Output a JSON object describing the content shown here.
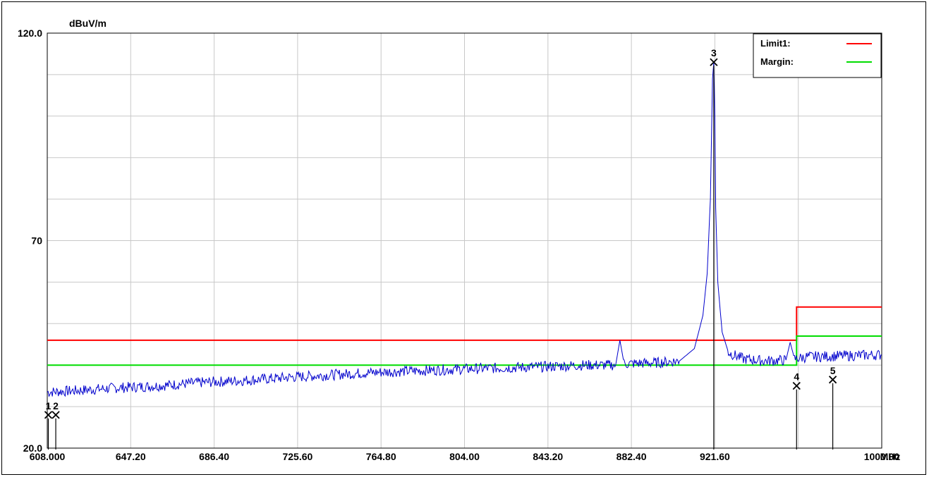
{
  "chart_data": {
    "type": "line",
    "title": "",
    "ylabel": "dBuV/m",
    "xlabel": "MHz",
    "xlim": [
      608.0,
      1000.0
    ],
    "ylim": [
      20.0,
      120.0
    ],
    "grid": true,
    "y_tick_labels": [
      {
        "value": 120.0,
        "label": "120.0"
      },
      {
        "value": 70,
        "label": "70"
      },
      {
        "value": 20.0,
        "label": "20.0"
      }
    ],
    "x_tick_labels": [
      {
        "value": 608.0,
        "label": "608.000"
      },
      {
        "value": 647.2,
        "label": "647.20"
      },
      {
        "value": 686.4,
        "label": "686.40"
      },
      {
        "value": 725.6,
        "label": "725.60"
      },
      {
        "value": 764.8,
        "label": "764.80"
      },
      {
        "value": 804.0,
        "label": "804.00"
      },
      {
        "value": 843.2,
        "label": "843.20"
      },
      {
        "value": 882.4,
        "label": "882.40"
      },
      {
        "value": 921.6,
        "label": "921.60"
      },
      {
        "value": 1000.0,
        "label": "1000.00"
      }
    ],
    "legend": {
      "placement": "top-right",
      "entries": [
        {
          "label": "Limit1:",
          "color": "#ff0000"
        },
        {
          "label": "Margin:",
          "color": "#00dd00"
        }
      ]
    },
    "limit_line": {
      "color": "#ff0000",
      "points": [
        [
          608.0,
          46.0
        ],
        [
          960.0,
          46.0
        ],
        [
          960.0,
          54.0
        ],
        [
          1000.0,
          54.0
        ]
      ]
    },
    "margin_line": {
      "color": "#00dd00",
      "points": [
        [
          608.0,
          40.0
        ],
        [
          960.0,
          40.0
        ],
        [
          960.0,
          47.0
        ],
        [
          1000.0,
          47.0
        ]
      ]
    },
    "series": [
      {
        "color": "#0000cc",
        "points": [
          [
            608.0,
            33.5
          ],
          [
            620.0,
            33.8
          ],
          [
            640.0,
            34.5
          ],
          [
            660.0,
            35.0
          ],
          [
            680.0,
            35.8
          ],
          [
            700.0,
            36.3
          ],
          [
            720.0,
            37.0
          ],
          [
            740.0,
            37.6
          ],
          [
            760.0,
            38.2
          ],
          [
            780.0,
            38.6
          ],
          [
            800.0,
            39.0
          ],
          [
            820.0,
            39.3
          ],
          [
            840.0,
            39.6
          ],
          [
            860.0,
            40.0
          ],
          [
            875.0,
            40.0
          ],
          [
            877.0,
            46.0
          ],
          [
            879.0,
            40.3
          ],
          [
            895.0,
            40.6
          ],
          [
            905.0,
            41.0
          ],
          [
            912.0,
            44.0
          ],
          [
            916.0,
            52.0
          ],
          [
            918.0,
            62.0
          ],
          [
            919.5,
            80.0
          ],
          [
            920.5,
            109.0
          ],
          [
            921.1,
            113.0
          ],
          [
            921.6,
            100.0
          ],
          [
            922.0,
            78.0
          ],
          [
            923.0,
            60.0
          ],
          [
            925.0,
            48.0
          ],
          [
            928.0,
            43.0
          ],
          [
            935.0,
            41.5
          ],
          [
            945.0,
            41.0
          ],
          [
            955.0,
            41.2
          ],
          [
            957.0,
            45.5
          ],
          [
            959.0,
            41.5
          ],
          [
            965.0,
            42.0
          ],
          [
            980.0,
            42.2
          ],
          [
            1000.0,
            42.5
          ]
        ]
      }
    ],
    "markers": [
      {
        "label": "1",
        "x": 608.5,
        "y": 28.0
      },
      {
        "label": "2",
        "x": 612.0,
        "y": 28.0
      },
      {
        "label": "3",
        "x": 921.1,
        "y": 113.0
      },
      {
        "label": "4",
        "x": 960.0,
        "y": 35.0
      },
      {
        "label": "5",
        "x": 977.0,
        "y": 36.5
      }
    ]
  }
}
